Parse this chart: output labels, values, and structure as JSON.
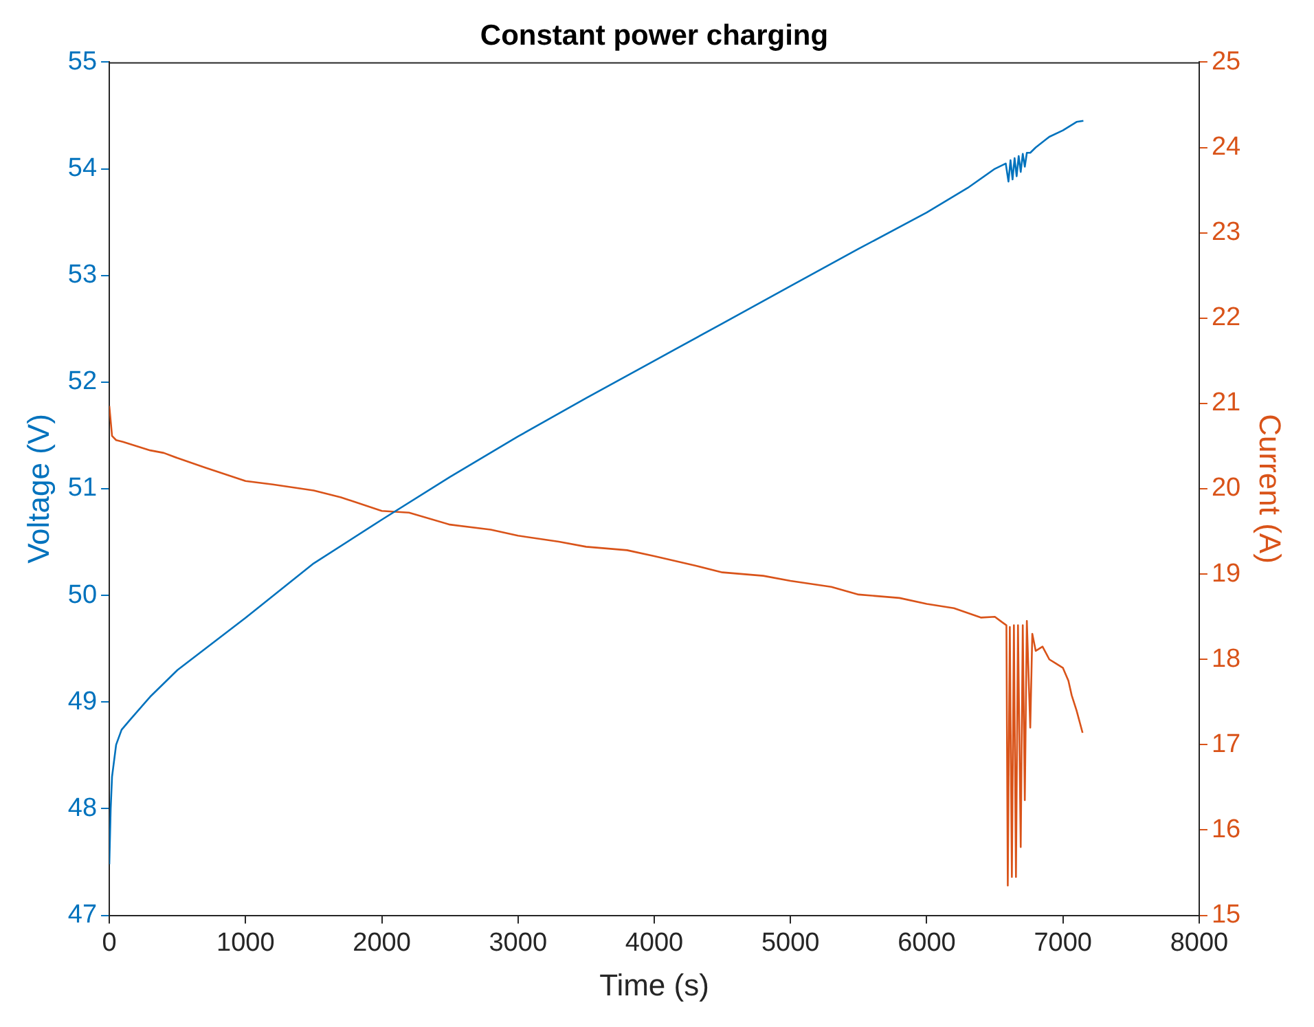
{
  "chart_data": {
    "type": "line",
    "title": "Constant power charging",
    "xlabel": "Time (s)",
    "ylabel": "Voltage (V)",
    "y2label": "Current (A)",
    "xlim": [
      0,
      8000
    ],
    "xticks": [
      0,
      1000,
      2000,
      3000,
      4000,
      5000,
      6000,
      7000,
      8000
    ],
    "ylim": [
      47,
      55
    ],
    "yticks": [
      47,
      48,
      49,
      50,
      51,
      52,
      53,
      54,
      55
    ],
    "y2lim": [
      15,
      25
    ],
    "y2ticks": [
      15,
      16,
      17,
      18,
      19,
      20,
      21,
      22,
      23,
      24,
      25
    ],
    "grid": false,
    "legend": false,
    "marker": "none",
    "line_style": "solid",
    "series": [
      {
        "color": "#0072bd",
        "x": [
          0,
          10,
          20,
          50,
          90,
          150,
          300,
          500,
          1000,
          1500,
          2000,
          2500,
          3000,
          3500,
          4000,
          4500,
          5000,
          5500,
          6000,
          6300,
          6500,
          6580,
          6600,
          6615,
          6630,
          6645,
          6660,
          6675,
          6690,
          6705,
          6720,
          6735,
          6760,
          6800,
          6900,
          7000,
          7100,
          7150
        ],
        "values": [
          47.48,
          48.0,
          48.3,
          48.6,
          48.74,
          48.83,
          49.05,
          49.3,
          49.79,
          50.3,
          50.71,
          51.11,
          51.49,
          51.85,
          52.2,
          52.55,
          52.9,
          53.25,
          53.59,
          53.82,
          54.0,
          54.05,
          53.88,
          54.08,
          53.9,
          54.1,
          53.93,
          54.12,
          53.97,
          54.14,
          54.02,
          54.15,
          54.15,
          54.2,
          54.3,
          54.36,
          54.44,
          54.45
        ]
      },
      {
        "color": "#d95319",
        "axis": "y2",
        "x": [
          0,
          20,
          50,
          100,
          200,
          300,
          400,
          500,
          700,
          1000,
          1200,
          1500,
          1700,
          2000,
          2200,
          2500,
          2800,
          3000,
          3300,
          3500,
          3800,
          4000,
          4300,
          4500,
          4800,
          5000,
          5300,
          5500,
          5800,
          6000,
          6200,
          6400,
          6500,
          6550,
          6585,
          6595,
          6610,
          6625,
          6640,
          6655,
          6670,
          6690,
          6705,
          6720,
          6735,
          6760,
          6775,
          6800,
          6850,
          6900,
          6950,
          7000,
          7040,
          7064,
          7100,
          7144
        ],
        "values": [
          20.97,
          20.62,
          20.57,
          20.55,
          20.5,
          20.45,
          20.42,
          20.36,
          20.25,
          20.09,
          20.05,
          19.98,
          19.9,
          19.74,
          19.72,
          19.58,
          19.52,
          19.45,
          19.38,
          19.32,
          19.28,
          19.21,
          19.1,
          19.02,
          18.98,
          18.92,
          18.85,
          18.76,
          18.72,
          18.65,
          18.6,
          18.49,
          18.5,
          18.44,
          18.4,
          15.35,
          18.38,
          15.45,
          18.4,
          15.45,
          18.4,
          15.8,
          18.4,
          16.35,
          18.45,
          17.2,
          18.3,
          18.1,
          18.15,
          18.0,
          17.95,
          17.9,
          17.75,
          17.58,
          17.4,
          17.14
        ]
      }
    ]
  }
}
